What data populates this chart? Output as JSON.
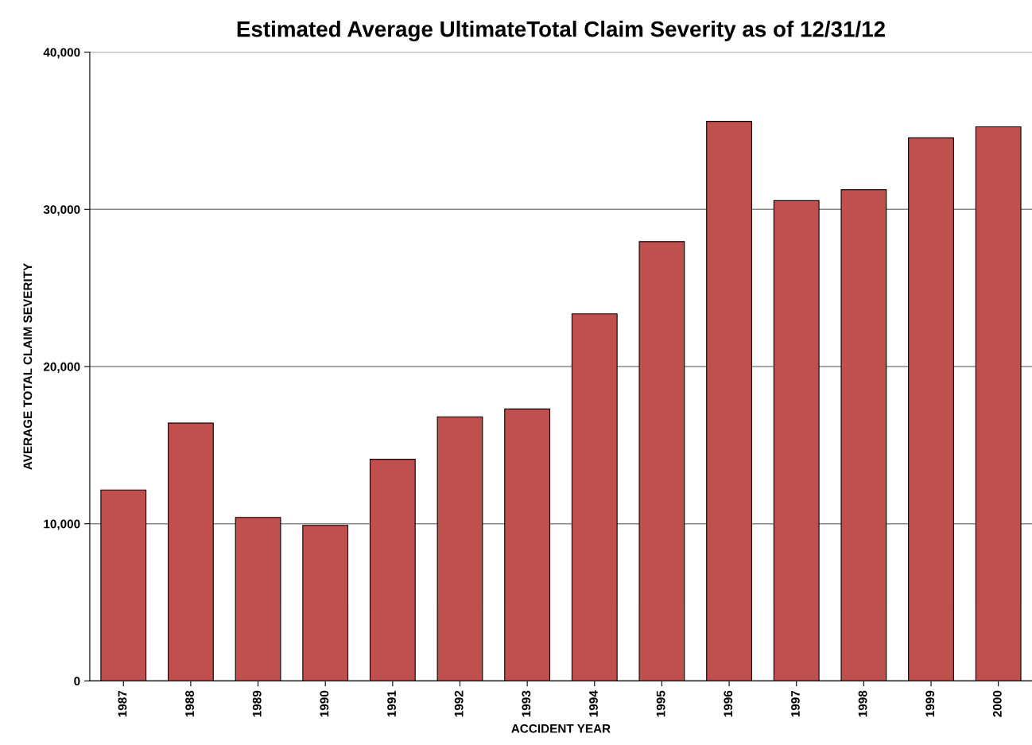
{
  "chart_data": {
    "type": "bar",
    "title": "Estimated Average UltimateTotal Claim Severity as of 12/31/12",
    "xlabel": "ACCIDENT YEAR",
    "ylabel": "AVERAGE TOTAL CLAIM SEVERITY",
    "categories": [
      "1987",
      "1988",
      "1989",
      "1990",
      "1991",
      "1992",
      "1993",
      "1994",
      "1995",
      "1996",
      "1997",
      "1998",
      "1999",
      "2000"
    ],
    "values": [
      12150,
      16400,
      10400,
      9900,
      14100,
      16800,
      17300,
      23350,
      27950,
      35600,
      30550,
      31250,
      34550,
      35250
    ],
    "color": "#c0504d",
    "ylim": [
      0,
      40000
    ],
    "yticks": [
      0,
      {
        "value": 10000,
        "label": "10,000"
      },
      {
        "value": 20000,
        "label": "20,000"
      },
      {
        "value": 30000,
        "label": "30,000"
      },
      {
        "value": 40000,
        "label": "40,000"
      }
    ],
    "grid": "y"
  }
}
